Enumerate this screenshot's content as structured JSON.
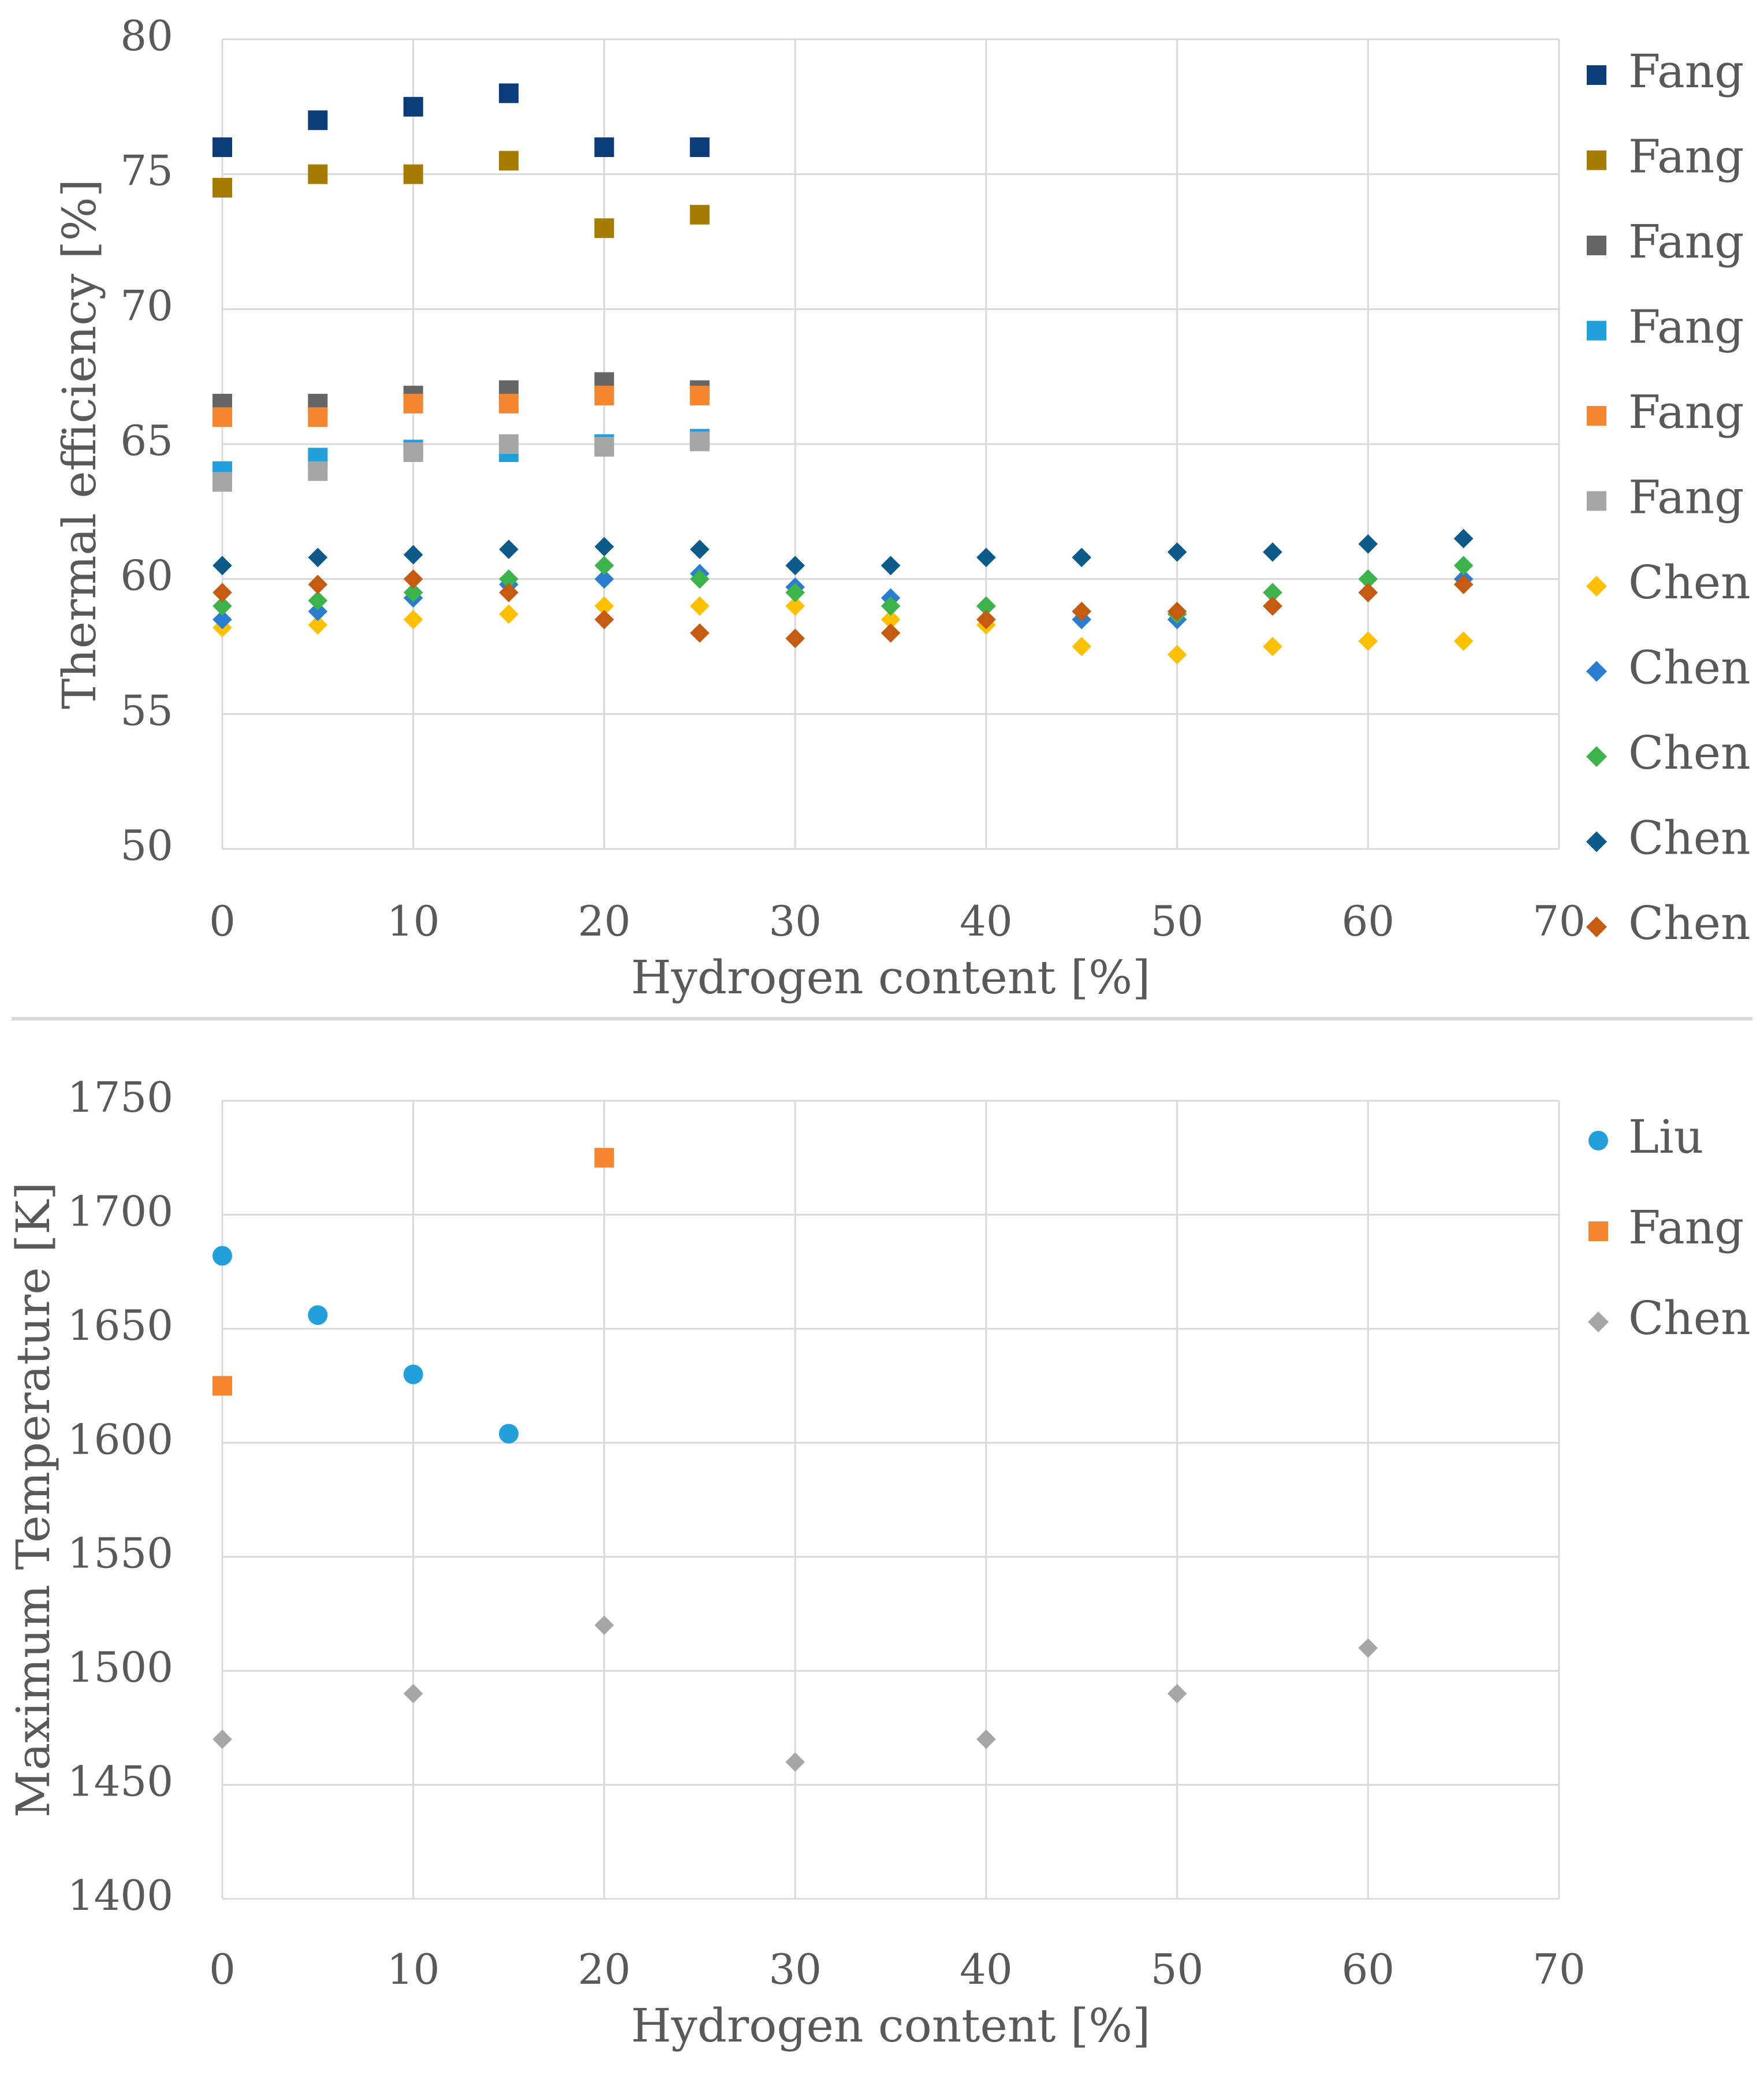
{
  "chart_data": [
    {
      "type": "scatter",
      "xlabel": "Hydrogen content [%]",
      "ylabel": "Thermal efficiency [%]",
      "xlim": [
        0,
        70
      ],
      "ylim": [
        50,
        80
      ],
      "xticks": [
        "0",
        "10",
        "20",
        "30",
        "40",
        "50",
        "60",
        "70"
      ],
      "yticks": [
        "50",
        "55",
        "60",
        "65",
        "70",
        "75",
        "80"
      ],
      "grid": true,
      "legend_position": "right",
      "series": [
        {
          "name": "Fang",
          "color": "#0b3d7a",
          "marker": "square",
          "x": [
            0,
            5,
            10,
            15,
            20,
            25
          ],
          "y": [
            76.0,
            77.0,
            77.5,
            78.0,
            76.0,
            76.0
          ]
        },
        {
          "name": "Fang",
          "color": "#a67c00",
          "marker": "square",
          "x": [
            0,
            5,
            10,
            15,
            20,
            25
          ],
          "y": [
            74.5,
            75.0,
            75.0,
            75.5,
            73.0,
            73.5
          ]
        },
        {
          "name": "Fang",
          "color": "#666666",
          "marker": "square",
          "x": [
            0,
            5,
            10,
            15,
            20,
            25
          ],
          "y": [
            66.5,
            66.5,
            66.8,
            67.0,
            67.3,
            67.0
          ]
        },
        {
          "name": "Fang",
          "color": "#22a0dc",
          "marker": "square",
          "x": [
            0,
            5,
            10,
            15,
            20,
            25
          ],
          "y": [
            64.0,
            64.5,
            64.8,
            64.7,
            65.0,
            65.2
          ]
        },
        {
          "name": "Fang",
          "color": "#f58630",
          "marker": "square",
          "x": [
            0,
            5,
            10,
            15,
            20,
            25
          ],
          "y": [
            66.0,
            66.0,
            66.5,
            66.5,
            66.8,
            66.8
          ]
        },
        {
          "name": "Fang",
          "color": "#a6a6a6",
          "marker": "square",
          "x": [
            0,
            5,
            10,
            15,
            20,
            25
          ],
          "y": [
            63.6,
            64.0,
            64.7,
            65.0,
            64.9,
            65.1
          ]
        },
        {
          "name": "Chen",
          "color": "#ffc000",
          "marker": "diamond",
          "x": [
            0,
            5,
            10,
            15,
            20,
            25,
            30,
            35,
            40,
            45,
            50,
            55,
            60,
            65
          ],
          "y": [
            58.2,
            58.3,
            58.5,
            58.7,
            59.0,
            59.0,
            59.0,
            58.5,
            58.3,
            57.5,
            57.2,
            57.5,
            57.7,
            57.7
          ]
        },
        {
          "name": "Chen",
          "color": "#2a7dd1",
          "marker": "diamond",
          "x": [
            0,
            5,
            10,
            15,
            20,
            25,
            30,
            35,
            40,
            45,
            50,
            55,
            60,
            65
          ],
          "y": [
            58.5,
            58.8,
            59.3,
            59.8,
            60.0,
            60.2,
            59.7,
            59.3,
            59.0,
            58.5,
            58.5,
            59.0,
            59.5,
            60.0
          ]
        },
        {
          "name": "Chen",
          "color": "#3cb44b",
          "marker": "diamond",
          "x": [
            0,
            5,
            10,
            15,
            20,
            25,
            30,
            35,
            40,
            45,
            50,
            55,
            60,
            65
          ],
          "y": [
            59.0,
            59.2,
            59.5,
            60.0,
            60.5,
            60.0,
            59.5,
            59.0,
            59.0,
            58.8,
            58.7,
            59.5,
            60.0,
            60.5
          ]
        },
        {
          "name": "Chen",
          "color": "#0b5a8a",
          "marker": "diamond",
          "x": [
            0,
            5,
            10,
            15,
            20,
            25,
            30,
            35,
            40,
            45,
            50,
            55,
            60,
            65
          ],
          "y": [
            60.5,
            60.8,
            60.9,
            61.1,
            61.2,
            61.1,
            60.5,
            60.5,
            60.8,
            60.8,
            61.0,
            61.0,
            61.3,
            61.5
          ]
        },
        {
          "name": "Chen",
          "color": "#c55a11",
          "marker": "diamond",
          "x": [
            0,
            5,
            10,
            15,
            20,
            25,
            30,
            35,
            40,
            45,
            50,
            55,
            60,
            65
          ],
          "y": [
            59.5,
            59.8,
            60.0,
            59.5,
            58.5,
            58.0,
            57.8,
            58.0,
            58.5,
            58.8,
            58.8,
            59.0,
            59.5,
            59.8
          ]
        }
      ]
    },
    {
      "type": "scatter",
      "xlabel": "Hydrogen content [%]",
      "ylabel": "Maximum Temperature [K]",
      "xlim": [
        0,
        70
      ],
      "ylim": [
        1400,
        1750
      ],
      "xticks": [
        "0",
        "10",
        "20",
        "30",
        "40",
        "50",
        "60",
        "70"
      ],
      "yticks": [
        "1400",
        "1450",
        "1500",
        "1550",
        "1600",
        "1650",
        "1700",
        "1750"
      ],
      "grid": true,
      "legend_position": "top-right",
      "series": [
        {
          "name": "Liu",
          "color": "#22a0dc",
          "marker": "circle",
          "x": [
            0,
            5,
            10,
            15
          ],
          "y": [
            1682,
            1656,
            1630,
            1604
          ]
        },
        {
          "name": "Fang",
          "color": "#f58630",
          "marker": "square",
          "x": [
            0,
            20
          ],
          "y": [
            1625,
            1725
          ]
        },
        {
          "name": "Chen",
          "color": "#a6a6a6",
          "marker": "diamond",
          "x": [
            0,
            10,
            20,
            30,
            40,
            50,
            60
          ],
          "y": [
            1470,
            1490,
            1520,
            1460,
            1470,
            1490,
            1510
          ]
        }
      ]
    }
  ]
}
